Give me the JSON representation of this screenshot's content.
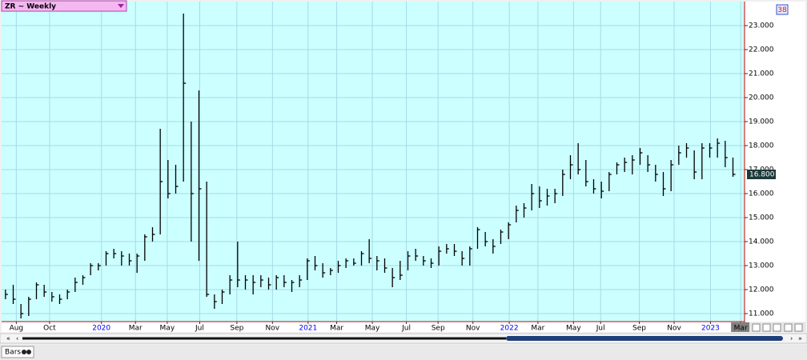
{
  "chart_data": {
    "type": "ohlc",
    "color": "#000000",
    "background": "#ccffff",
    "grid": true,
    "xlim": [
      -0.5,
      95.5
    ],
    "ylim": [
      10.667,
      24.0
    ],
    "yticks": [
      {
        "value": 11,
        "label": "11.000"
      },
      {
        "value": 12,
        "label": "12.000"
      },
      {
        "value": 13,
        "label": "13.000"
      },
      {
        "value": 14,
        "label": "14.000"
      },
      {
        "value": 15,
        "label": "15.000"
      },
      {
        "value": 16,
        "label": "16.000"
      },
      {
        "value": 17,
        "label": "17.000"
      },
      {
        "value": 18,
        "label": "18.000"
      },
      {
        "value": 19,
        "label": "19.000"
      },
      {
        "value": 20,
        "label": "20.000"
      },
      {
        "value": 21,
        "label": "21.000"
      },
      {
        "value": 22,
        "label": "22.000"
      },
      {
        "value": 23,
        "label": "23.000"
      }
    ],
    "xticks": [
      {
        "value": 1.4,
        "label": "Aug"
      },
      {
        "value": 5.7,
        "label": "Oct"
      },
      {
        "value": 12.4,
        "label": "2020",
        "color": "#0000ff"
      },
      {
        "value": 16.8,
        "label": "Mar"
      },
      {
        "value": 20.9,
        "label": "May"
      },
      {
        "value": 25.1,
        "label": "Jul"
      },
      {
        "value": 29.9,
        "label": "Sep"
      },
      {
        "value": 34.5,
        "label": "Nov"
      },
      {
        "value": 39.1,
        "label": "2021",
        "color": "#0000ff"
      },
      {
        "value": 42.8,
        "label": "Mar"
      },
      {
        "value": 47.4,
        "label": "May"
      },
      {
        "value": 51.8,
        "label": "Jul"
      },
      {
        "value": 55.9,
        "label": "Sep"
      },
      {
        "value": 60.4,
        "label": "Nov"
      },
      {
        "value": 65.1,
        "label": "2022",
        "color": "#0000ff"
      },
      {
        "value": 68.8,
        "label": "Mar"
      },
      {
        "value": 73.4,
        "label": "May"
      },
      {
        "value": 76.9,
        "label": "Jul"
      },
      {
        "value": 81.9,
        "label": "Sep"
      },
      {
        "value": 86.4,
        "label": "Nov"
      },
      {
        "value": 91.1,
        "label": "2023",
        "color": "#0000ff"
      },
      {
        "value": 95.0,
        "label": "Mar"
      }
    ],
    "high": [
      12.0,
      12.2,
      11.4,
      11.7,
      12.3,
      12.2,
      11.9,
      11.8,
      12.0,
      12.5,
      12.6,
      13.1,
      13.1,
      13.6,
      13.7,
      13.6,
      13.5,
      13.5,
      14.3,
      14.6,
      18.7,
      17.4,
      17.2,
      23.5,
      19.0,
      20.3,
      16.5,
      11.8,
      12.0,
      12.6,
      14.0,
      12.6,
      12.6,
      12.6,
      12.5,
      12.6,
      12.6,
      12.4,
      12.6,
      13.3,
      13.4,
      13.1,
      12.9,
      13.2,
      13.3,
      13.3,
      13.6,
      14.1,
      13.4,
      13.3,
      12.9,
      13.2,
      13.6,
      13.7,
      13.4,
      13.3,
      13.8,
      13.9,
      13.9,
      13.6,
      13.8,
      14.6,
      14.4,
      14.1,
      14.5,
      14.8,
      15.5,
      15.6,
      16.4,
      16.3,
      16.2,
      16.2,
      17.0,
      17.6,
      18.1,
      17.4,
      16.6,
      16.5,
      16.9,
      17.3,
      17.5,
      17.6,
      17.9,
      17.6,
      17.2,
      16.9,
      17.4,
      18.0,
      18.1,
      17.8,
      18.1,
      18.1,
      18.3,
      18.2,
      17.5
    ],
    "low": [
      11.6,
      11.4,
      10.8,
      10.9,
      11.6,
      11.7,
      11.5,
      11.4,
      11.6,
      11.9,
      12.2,
      12.6,
      12.8,
      13.0,
      13.3,
      13.0,
      13.0,
      12.7,
      13.2,
      14.0,
      14.3,
      15.8,
      16.0,
      16.5,
      14.0,
      13.2,
      11.7,
      11.2,
      11.4,
      11.8,
      12.1,
      12.0,
      11.8,
      12.1,
      12.0,
      12.0,
      12.1,
      11.9,
      12.1,
      12.4,
      12.8,
      12.5,
      12.6,
      12.7,
      12.9,
      13.0,
      13.0,
      13.1,
      12.8,
      12.7,
      12.1,
      12.4,
      12.8,
      13.2,
      13.0,
      12.9,
      13.0,
      13.5,
      13.4,
      13.0,
      13.0,
      13.7,
      13.8,
      13.5,
      13.9,
      14.1,
      14.8,
      15.0,
      15.3,
      15.4,
      15.5,
      15.6,
      15.9,
      16.6,
      16.8,
      16.3,
      16.0,
      15.8,
      16.1,
      16.8,
      16.9,
      16.8,
      17.2,
      16.9,
      16.5,
      15.9,
      16.1,
      17.2,
      17.5,
      16.6,
      16.6,
      17.5,
      17.5,
      17.1,
      16.7
    ],
    "close": [
      11.8,
      11.6,
      11.0,
      11.6,
      12.2,
      11.9,
      11.7,
      11.6,
      11.9,
      12.3,
      12.5,
      13.0,
      13.0,
      13.5,
      13.5,
      13.4,
      13.2,
      13.4,
      14.2,
      14.3,
      16.5,
      16.0,
      16.3,
      20.6,
      16.0,
      16.2,
      11.8,
      11.5,
      11.9,
      12.4,
      12.4,
      12.4,
      12.3,
      12.4,
      12.2,
      12.5,
      12.3,
      12.3,
      12.4,
      13.2,
      13.0,
      12.7,
      12.8,
      13.0,
      13.2,
      13.1,
      13.5,
      13.3,
      13.2,
      12.9,
      12.5,
      12.6,
      13.4,
      13.4,
      13.2,
      13.1,
      13.6,
      13.7,
      13.6,
      13.3,
      13.7,
      14.5,
      14.0,
      13.8,
      14.4,
      14.7,
      15.3,
      15.4,
      16.0,
      15.7,
      15.9,
      16.0,
      16.8,
      17.2,
      17.0,
      16.5,
      16.2,
      16.1,
      16.8,
      17.2,
      17.3,
      17.4,
      17.7,
      17.2,
      16.8,
      16.2,
      17.2,
      17.7,
      17.9,
      16.9,
      17.9,
      17.9,
      18.1,
      17.5,
      16.8
    ],
    "last_price": {
      "value": 16.8,
      "label": "16.800"
    }
  },
  "ui": {
    "symbol_box": "ZR ~ Weekly",
    "badge": "38",
    "tab": "Bars"
  }
}
